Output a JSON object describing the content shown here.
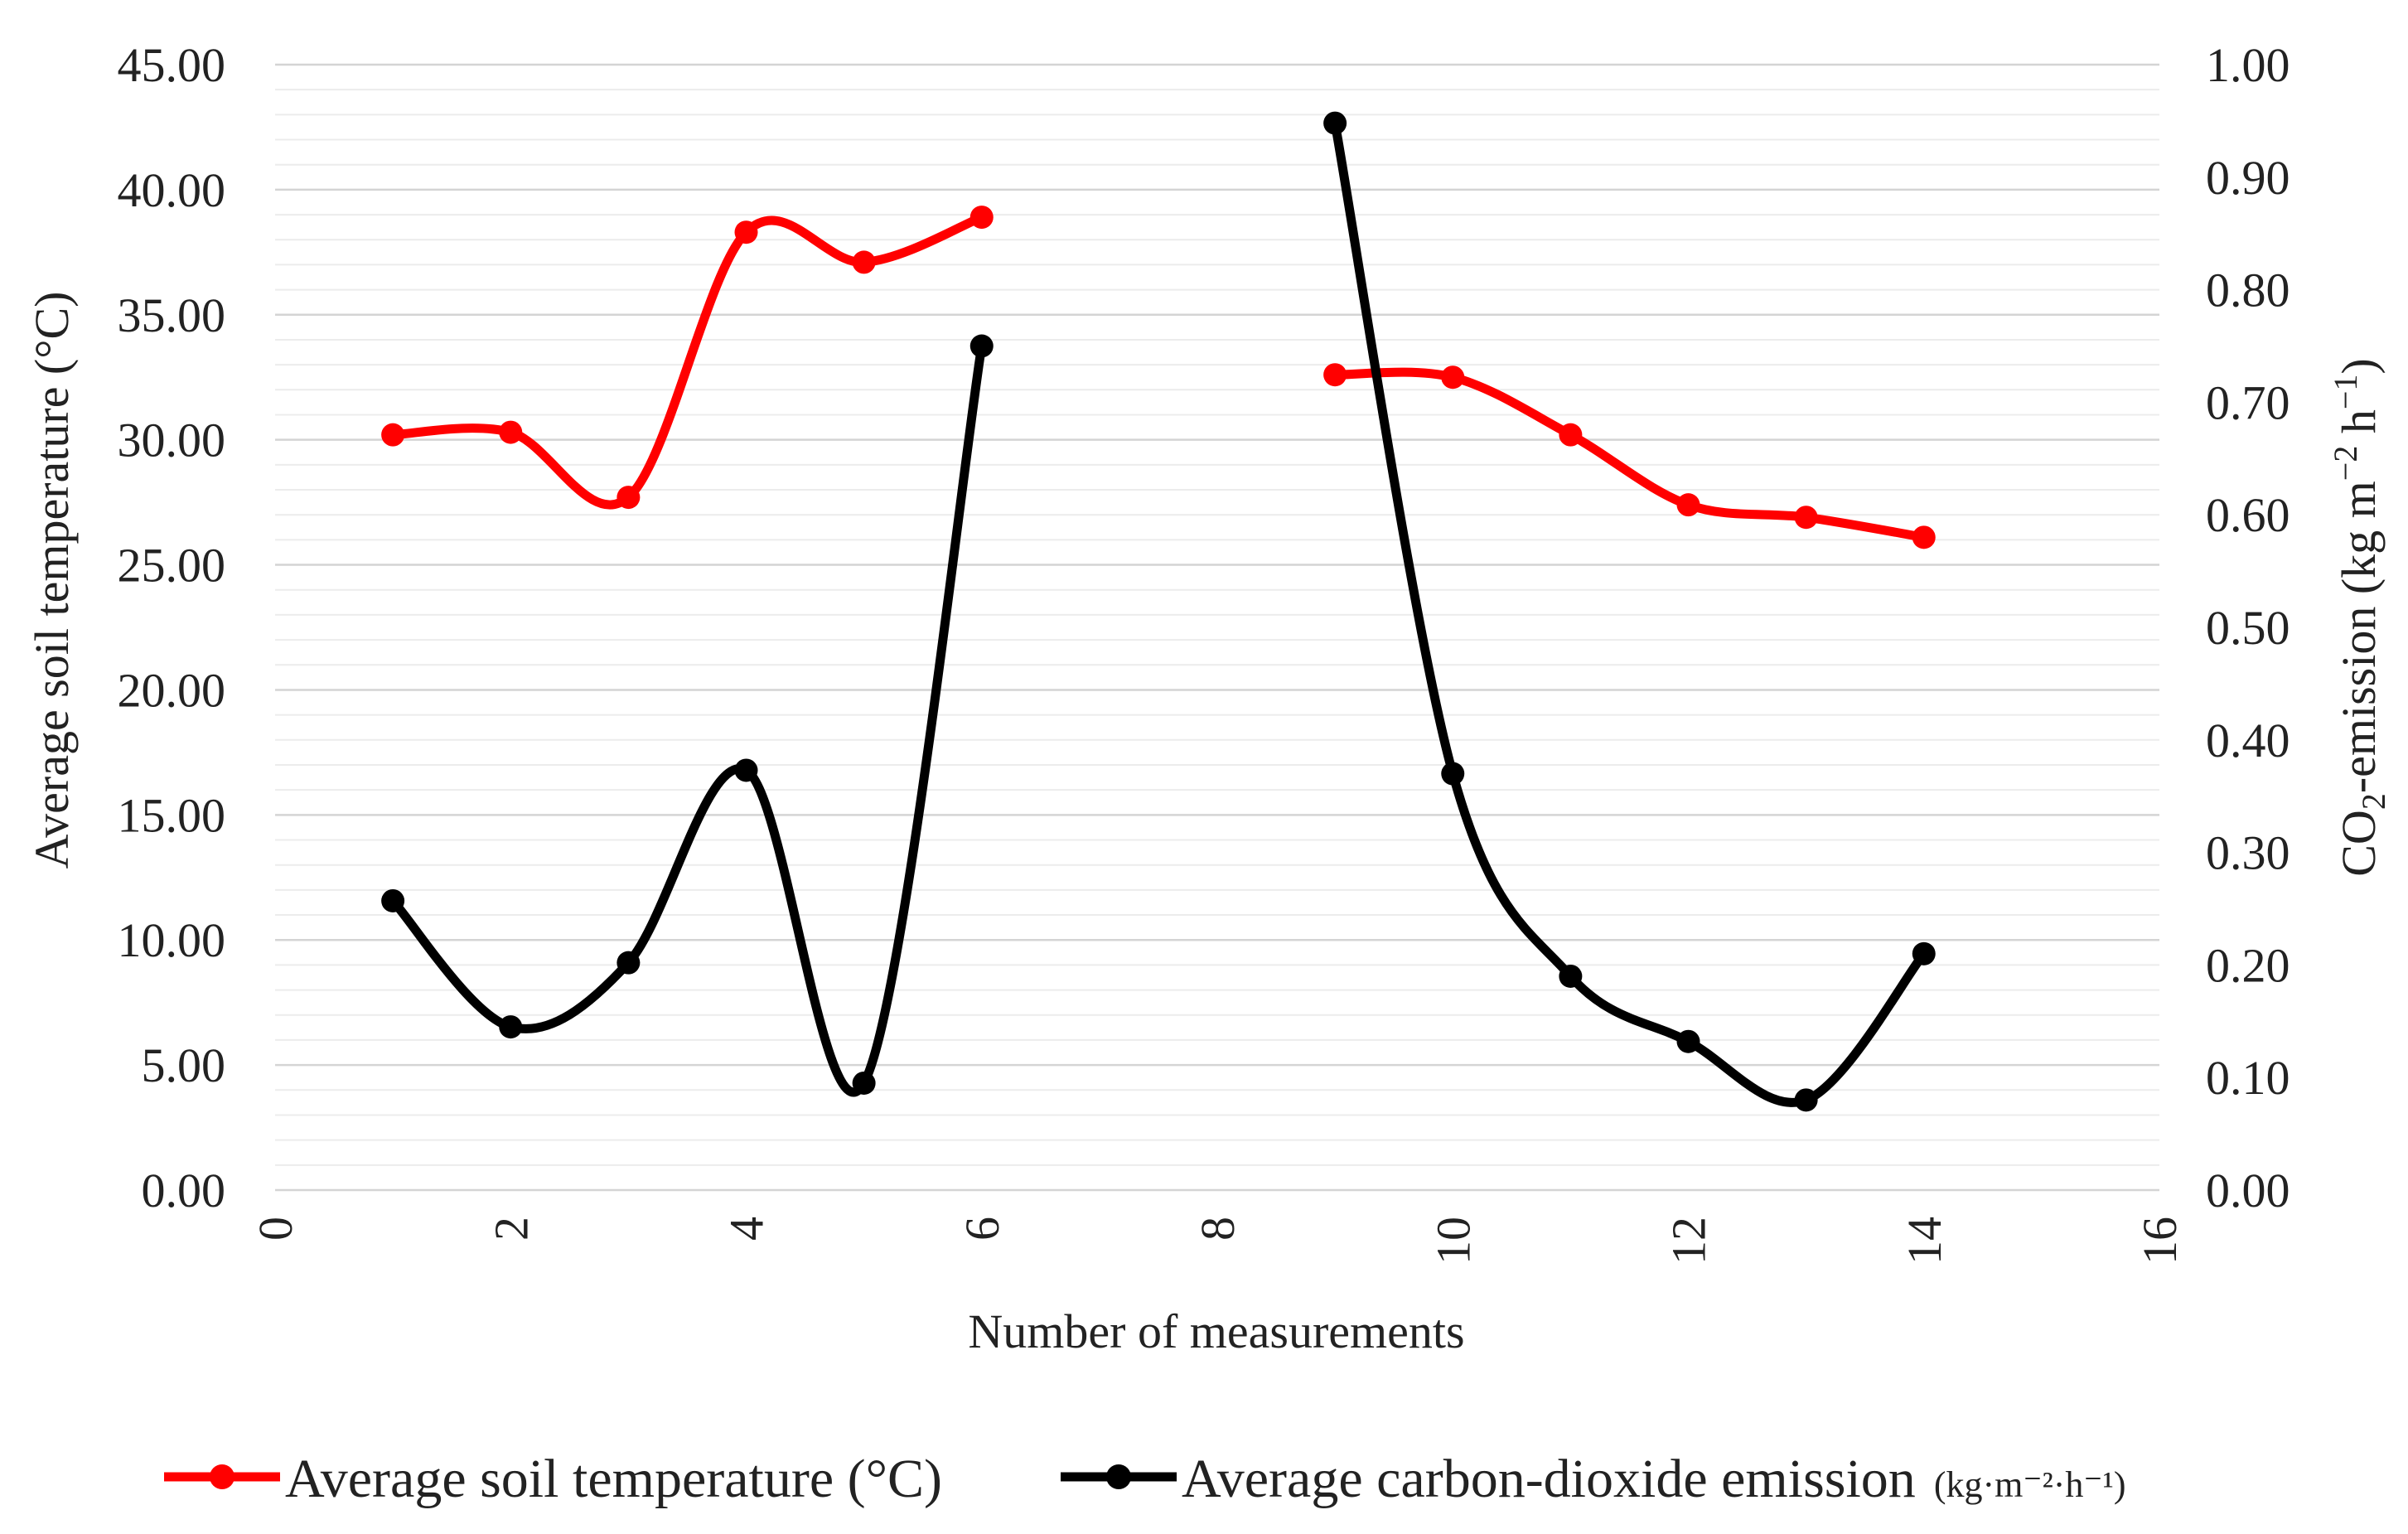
{
  "chart_data": {
    "type": "line",
    "title": "",
    "xlabel": "Number of measurements",
    "ylabel_left": "Average soil temperature (°C)",
    "ylabel_right": {
      "prefix": "CO",
      "sub": "2",
      "mid": "-emission (kg m",
      "sup1": "−2",
      "mid2": " h",
      "sup2": "−1",
      "suffix": ")"
    },
    "xlim": [
      0,
      16
    ],
    "xticks": [
      0,
      2,
      4,
      6,
      8,
      10,
      12,
      14,
      16
    ],
    "xtick_labels": [
      "0",
      "2",
      "4",
      "6",
      "8",
      "10",
      "12",
      "14",
      "16"
    ],
    "ylim_left": [
      0,
      45
    ],
    "yticks_left": [
      0,
      5,
      10,
      15,
      20,
      25,
      30,
      35,
      40,
      45
    ],
    "ytick_labels_left": [
      "0.00",
      "5.00",
      "10.00",
      "15.00",
      "20.00",
      "25.00",
      "30.00",
      "35.00",
      "40.00",
      "45.00"
    ],
    "ylim_right": [
      0,
      1
    ],
    "yticks_right": [
      0,
      0.1,
      0.2,
      0.3,
      0.4,
      0.5,
      0.6,
      0.7,
      0.8,
      0.9,
      1.0
    ],
    "ytick_labels_right": [
      "0.00",
      "0.10",
      "0.20",
      "0.30",
      "0.40",
      "0.50",
      "0.60",
      "0.70",
      "0.80",
      "0.90",
      "1.00"
    ],
    "minor_grid_step_left": 1,
    "grid": true,
    "legend_position": "bottom",
    "series": [
      {
        "name": "Average soil temperature (°C)",
        "axis": "left",
        "color": "#ff0000",
        "segments": [
          [
            [
              1,
              30.2
            ],
            [
              2,
              30.3
            ],
            [
              3,
              27.7
            ],
            [
              4,
              38.3
            ],
            [
              5,
              37.1
            ],
            [
              6,
              38.9
            ]
          ],
          [
            [
              9,
              32.6
            ],
            [
              10,
              32.5
            ],
            [
              11,
              30.2
            ],
            [
              12,
              27.4
            ],
            [
              13,
              26.9
            ],
            [
              14,
              26.1
            ]
          ]
        ]
      },
      {
        "name": "Average carbon-dioxide emission",
        "name_suffix": "(kg·m⁻²·h⁻¹)",
        "axis": "right",
        "color": "#000000",
        "segments": [
          [
            [
              1,
              0.257
            ],
            [
              2,
              0.145
            ],
            [
              3,
              0.202
            ],
            [
              4,
              0.373
            ],
            [
              5,
              0.095
            ],
            [
              6,
              0.75
            ]
          ],
          [
            [
              9,
              0.948
            ],
            [
              10,
              0.37
            ],
            [
              11,
              0.19
            ],
            [
              12,
              0.132
            ],
            [
              13,
              0.08
            ],
            [
              14,
              0.21
            ]
          ]
        ]
      }
    ]
  }
}
